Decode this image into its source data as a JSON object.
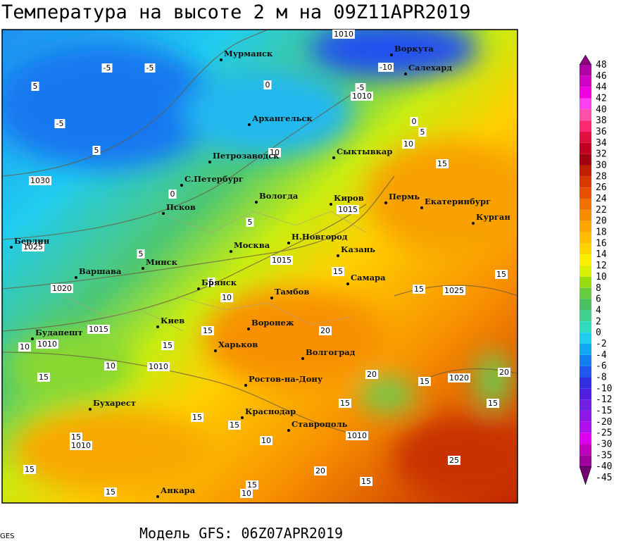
{
  "header": {
    "title": "Температура на высоте 2 м на 09Z11APR2019"
  },
  "footer": {
    "model": "Модель GFS: 06Z07APR2019",
    "credit": "GES"
  },
  "cities": [
    "Мурманск",
    "Воркута",
    "Салехард",
    "Архангельск",
    "Петрозаводск",
    "Сыктывкар",
    "С.Петербург",
    "Вологда",
    "Киров",
    "Пермь",
    "Екатеринбург",
    "Курган",
    "Псков",
    "Берлин",
    "Москва",
    "Н.Новгород",
    "Казань",
    "Минск",
    "Варшава",
    "Брянск",
    "Самара",
    "Тамбов",
    "Киев",
    "Воронеж",
    "Будапешт",
    "Харьков",
    "Волгоград",
    "Ростов-на-Дону",
    "Бухарест",
    "Краснодар",
    "Ставрополь",
    "Анкара"
  ],
  "contour_labels": [
    1030,
    1025,
    1020,
    1015,
    1010,
    1010,
    1015,
    1015,
    1010,
    1025,
    1020,
    1010,
    1010,
    1010,
    -5,
    -5,
    -5,
    -10,
    -5,
    5,
    0,
    0,
    5,
    10,
    15,
    5,
    0,
    10,
    5,
    5,
    5,
    10,
    15,
    15,
    15,
    20,
    15,
    15,
    10,
    10,
    15,
    20,
    15,
    20,
    15,
    15,
    15,
    15,
    10,
    25,
    20,
    15,
    15,
    15,
    15,
    10,
    15
  ],
  "legend": {
    "levels": [
      {
        "value": 48,
        "color": "#8a0080"
      },
      {
        "value": 46,
        "color": "#b000a8"
      },
      {
        "value": 44,
        "color": "#d000c8"
      },
      {
        "value": 42,
        "color": "#f000e0"
      },
      {
        "value": 40,
        "color": "#ff40f0"
      },
      {
        "value": 38,
        "color": "#ff50a8"
      },
      {
        "value": 36,
        "color": "#ff2870"
      },
      {
        "value": 34,
        "color": "#e01040"
      },
      {
        "value": 32,
        "color": "#c00020"
      },
      {
        "value": 30,
        "color": "#a00010"
      },
      {
        "value": 28,
        "color": "#c02000"
      },
      {
        "value": 26,
        "color": "#d83800"
      },
      {
        "value": 24,
        "color": "#e85000"
      },
      {
        "value": 22,
        "color": "#f07000"
      },
      {
        "value": 20,
        "color": "#f88c00"
      },
      {
        "value": 18,
        "color": "#ffa400"
      },
      {
        "value": 16,
        "color": "#ffbc00"
      },
      {
        "value": 14,
        "color": "#ffd400"
      },
      {
        "value": 12,
        "color": "#ffee00"
      },
      {
        "value": 10,
        "color": "#d8f000"
      },
      {
        "value": 8,
        "color": "#98dc10"
      },
      {
        "value": 6,
        "color": "#68cc40"
      },
      {
        "value": 4,
        "color": "#48c060"
      },
      {
        "value": 2,
        "color": "#40d090"
      },
      {
        "value": 0,
        "color": "#30dcc0"
      },
      {
        "value": -2,
        "color": "#20ccf0"
      },
      {
        "value": -4,
        "color": "#10a8f0"
      },
      {
        "value": -6,
        "color": "#1080f0"
      },
      {
        "value": -8,
        "color": "#2058f0"
      },
      {
        "value": -10,
        "color": "#3030e0"
      },
      {
        "value": -12,
        "color": "#5020e0"
      },
      {
        "value": -15,
        "color": "#7020e0"
      },
      {
        "value": -20,
        "color": "#9018e8"
      },
      {
        "value": -25,
        "color": "#b010f0"
      },
      {
        "value": -30,
        "color": "#e000f0"
      },
      {
        "value": -35,
        "color": "#c000c0"
      },
      {
        "value": -40,
        "color": "#a000a0"
      },
      {
        "value": -45,
        "color": "#700070"
      }
    ]
  }
}
